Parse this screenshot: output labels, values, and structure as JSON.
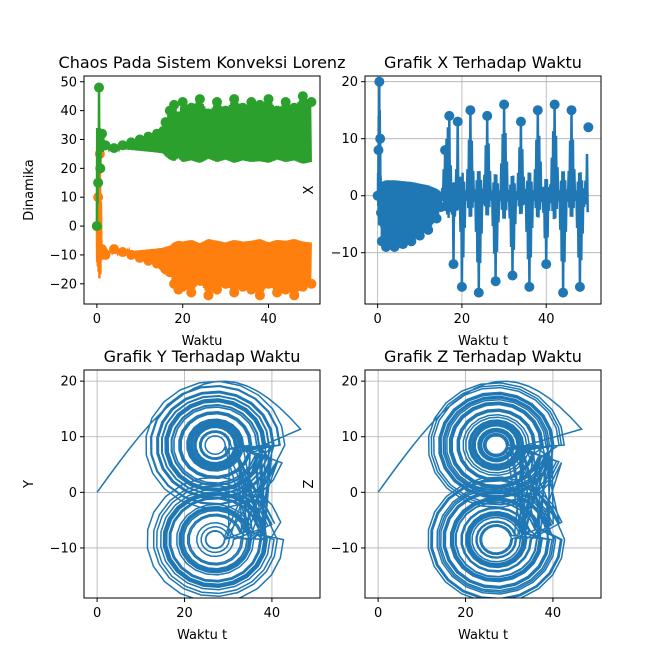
{
  "chart_data": [
    {
      "type": "scatter",
      "title": "Chaos Pada Sistem Konveksi Lorenz",
      "xlabel": "Waktu",
      "ylabel": "Dinamika",
      "xlim": [
        -3,
        52
      ],
      "ylim": [
        -27,
        52
      ],
      "xticks": [
        0,
        20,
        40
      ],
      "yticks": [
        -20,
        -10,
        0,
        10,
        20,
        30,
        40,
        50
      ],
      "grid": false,
      "series": [
        {
          "color": "#ff7f0e",
          "x": [
            0,
            0.3,
            0.7,
            1.2,
            2,
            4,
            6,
            8,
            10,
            12,
            14,
            15.5,
            16,
            17,
            18,
            19,
            20,
            22,
            24,
            26,
            28,
            30,
            32,
            34,
            36,
            38,
            40,
            42,
            44,
            46,
            48,
            50
          ],
          "y": [
            0,
            10,
            25,
            -8,
            -10,
            -8,
            -9,
            -10,
            -11,
            -12,
            -13,
            -14,
            -15,
            -16,
            -20,
            -22,
            -21,
            -23,
            -19,
            -24,
            -22,
            -20,
            -23,
            -21,
            -22,
            -24,
            -20,
            -23,
            -22,
            -24,
            -21,
            -20
          ]
        },
        {
          "color": "#2ca02c",
          "x": [
            0,
            0.3,
            0.5,
            0.8,
            1.2,
            2,
            4,
            6,
            8,
            10,
            12,
            14,
            15.5,
            16,
            17,
            18,
            19,
            20,
            22,
            24,
            26,
            28,
            30,
            32,
            34,
            36,
            38,
            40,
            42,
            44,
            46,
            48,
            50
          ],
          "y": [
            0,
            15,
            48,
            20,
            32,
            28,
            27,
            28,
            29,
            30,
            31,
            32,
            33,
            36,
            40,
            42,
            38,
            43,
            41,
            44,
            39,
            43,
            40,
            44,
            41,
            43,
            42,
            44,
            40,
            43,
            41,
            45,
            43
          ]
        }
      ]
    },
    {
      "type": "scatter",
      "title": "Grafik X Terhadap Waktu",
      "xlabel": "Waktu t",
      "ylabel": "X",
      "xlim": [
        -3,
        53
      ],
      "ylim": [
        -19,
        21
      ],
      "xticks": [
        0,
        20,
        40
      ],
      "yticks": [
        -10,
        0,
        10,
        20
      ],
      "grid": true,
      "series": [
        {
          "color": "#1f77b4",
          "x": [
            0,
            0.2,
            0.4,
            0.6,
            0.8,
            1,
            2,
            4,
            6,
            8,
            10,
            12,
            14,
            15,
            16,
            17,
            18,
            19,
            20,
            22,
            24,
            26,
            28,
            30,
            32,
            34,
            36,
            38,
            40,
            42,
            44,
            46,
            48,
            50
          ],
          "y": [
            0,
            8,
            20,
            10,
            -3,
            -8,
            -9,
            -9,
            -8.5,
            -8,
            -7,
            -6,
            -4,
            -2,
            8,
            14,
            -12,
            13,
            -16,
            15,
            -17,
            14,
            -15,
            16,
            -14,
            13,
            -16,
            15,
            -12,
            16,
            -17,
            15,
            -16,
            12
          ]
        }
      ]
    },
    {
      "type": "line",
      "title": "Grafik Y Terhadap Waktu",
      "xlabel": "Waktu t",
      "ylabel": "Y",
      "xlim": [
        -3,
        51
      ],
      "ylim": [
        -19,
        22
      ],
      "xticks": [
        0,
        20,
        40
      ],
      "yticks": [
        -10,
        0,
        10,
        20
      ],
      "grid": true,
      "series": [
        {
          "color": "#1f77b4",
          "attractor": {
            "center_upper": [
              27,
              8.5
            ],
            "center_lower": [
              27,
              -8.5
            ],
            "xmin": 8,
            "xmax": 49
          }
        }
      ]
    },
    {
      "type": "line",
      "title": "Grafik Z Terhadap Waktu",
      "xlabel": "Waktu t",
      "ylabel": "Z",
      "xlim": [
        -3,
        51
      ],
      "ylim": [
        -19,
        22
      ],
      "xticks": [
        0,
        20,
        40
      ],
      "yticks": [
        -10,
        0,
        10,
        20
      ],
      "grid": true,
      "series": [
        {
          "color": "#1f77b4",
          "attractor": {
            "center_upper": [
              27,
              8.5
            ],
            "center_lower": [
              27,
              -8.5
            ],
            "xmin": 8,
            "xmax": 49
          }
        }
      ]
    }
  ]
}
